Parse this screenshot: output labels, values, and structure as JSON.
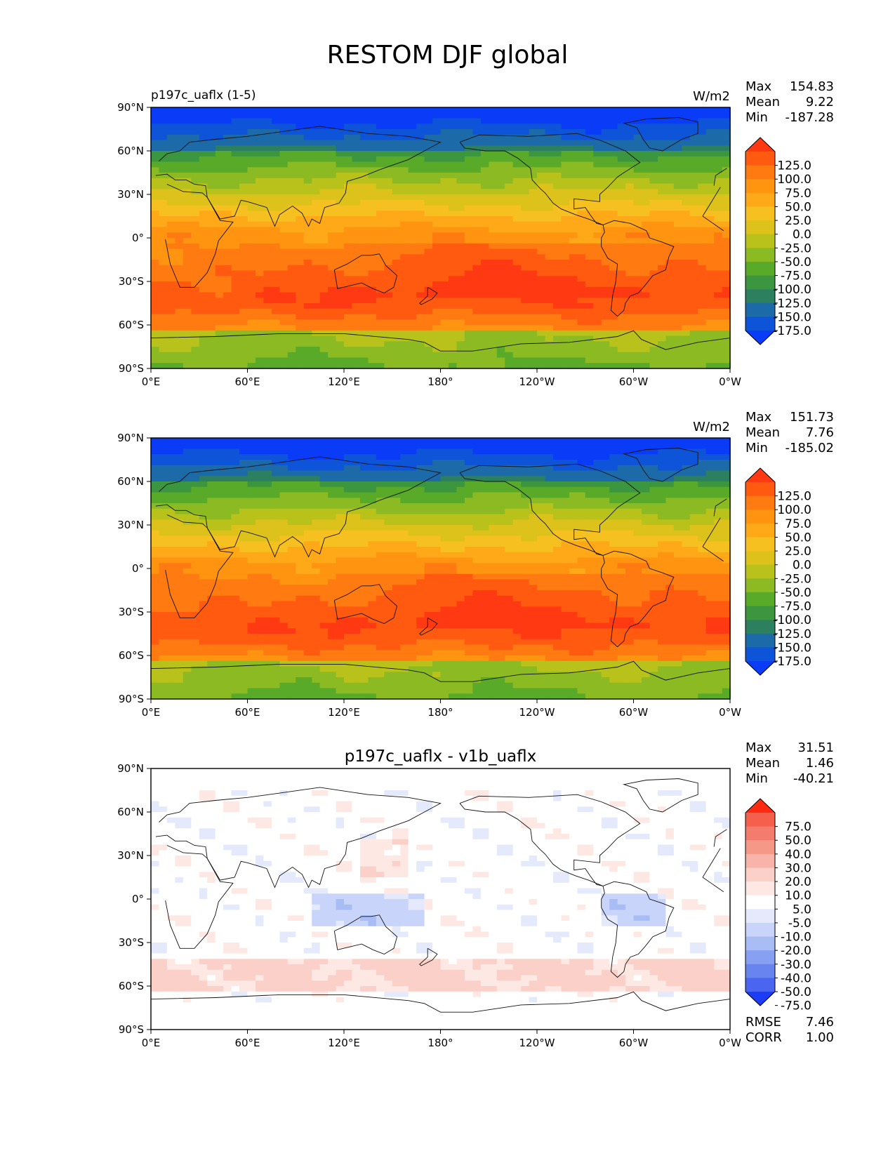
{
  "figure": {
    "title": "RESTOM DJF global"
  },
  "lat_ticks": [
    "90°N",
    "60°N",
    "30°N",
    "0°",
    "30°S",
    "60°S",
    "90°S"
  ],
  "lon_ticks": [
    "0°E",
    "60°E",
    "120°E",
    "180°",
    "120°W",
    "60°W",
    "0°W"
  ],
  "panels": [
    {
      "id": "test",
      "left_title": "p197c_uaflx (1-5)",
      "center_title": "",
      "units": "W/m2",
      "stats": [
        {
          "label": "Max",
          "value": "154.83"
        },
        {
          "label": "Mean",
          "value": "9.22"
        },
        {
          "label": "Min",
          "value": "-187.28"
        }
      ],
      "colorbar": {
        "labels": [
          "125.0",
          "100.0",
          "75.0",
          "50.0",
          "25.0",
          "0.0",
          "-25.0",
          "-50.0",
          "-75.0",
          "-100.0",
          "-125.0",
          "-150.0",
          "-175.0"
        ],
        "colors": [
          "#ff3a13",
          "#ff5a10",
          "#ff7a10",
          "#ff9410",
          "#ffa818",
          "#f5c020",
          "#dcc21a",
          "#b8c21a",
          "#8cba22",
          "#58aa28",
          "#3c9640",
          "#2c8060",
          "#1c6aa8",
          "#0e54d8",
          "#0a3cf8"
        ]
      }
    },
    {
      "id": "reference",
      "left_title": "",
      "center_title": "",
      "units": "W/m2",
      "stats": [
        {
          "label": "Max",
          "value": "151.73"
        },
        {
          "label": "Mean",
          "value": "7.76"
        },
        {
          "label": "Min",
          "value": "-185.02"
        }
      ],
      "colorbar": {
        "labels": [
          "125.0",
          "100.0",
          "75.0",
          "50.0",
          "25.0",
          "0.0",
          "-25.0",
          "-50.0",
          "-75.0",
          "-100.0",
          "-125.0",
          "-150.0",
          "-175.0"
        ],
        "colors": [
          "#ff3a13",
          "#ff5a10",
          "#ff7a10",
          "#ff9410",
          "#ffa818",
          "#f5c020",
          "#dcc21a",
          "#b8c21a",
          "#8cba22",
          "#58aa28",
          "#3c9640",
          "#2c8060",
          "#1c6aa8",
          "#0e54d8",
          "#0a3cf8"
        ]
      }
    },
    {
      "id": "difference",
      "left_title": "",
      "center_title": "p197c_uaflx - v1b_uaflx",
      "units": "",
      "stats": [
        {
          "label": "Max",
          "value": "31.51"
        },
        {
          "label": "Mean",
          "value": "1.46"
        },
        {
          "label": "Min",
          "value": "-40.21"
        }
      ],
      "bottom_stats": [
        {
          "label": "RMSE",
          "value": "7.46"
        },
        {
          "label": "CORR",
          "value": "1.00"
        }
      ],
      "colorbar": {
        "labels": [
          "75.0",
          "50.0",
          "40.0",
          "30.0",
          "20.0",
          "10.0",
          "5.0",
          "-5.0",
          "-10.0",
          "-20.0",
          "-30.0",
          "-40.0",
          "-50.0",
          "-75.0"
        ],
        "colors": [
          "#ff2a10",
          "#f4604c",
          "#f47c6c",
          "#f69888",
          "#f8b4a8",
          "#fbd0c8",
          "#fde8e4",
          "#ffffff",
          "#e4eafc",
          "#c8d4fa",
          "#a8bcf6",
          "#88a0f2",
          "#6884ee",
          "#4a66f0",
          "#1c3cf6"
        ]
      }
    }
  ]
}
